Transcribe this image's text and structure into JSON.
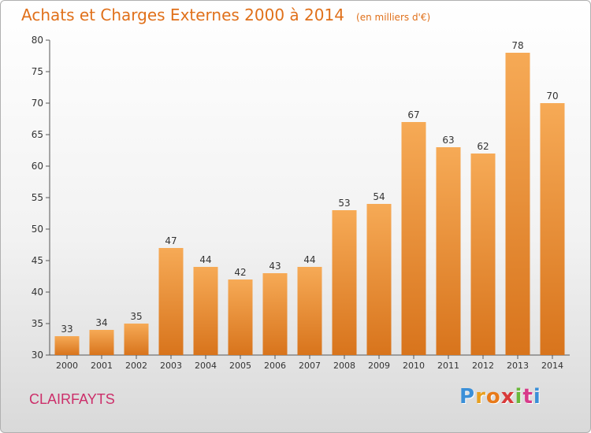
{
  "header": {
    "title": "Achats et Charges Externes 2000 à 2014",
    "subtitle": "(en milliers d'€)"
  },
  "footer": {
    "commune": "CLAIRFAYTS",
    "logo_letters": [
      "P",
      "r",
      "o",
      "x",
      "i",
      "t",
      "i"
    ],
    "logo_colors": [
      "#3a8fd8",
      "#e8a020",
      "#e87a1a",
      "#d83a3a",
      "#6ab83a",
      "#d83a8a",
      "#3a8fd8"
    ]
  },
  "colors": {
    "bar_light": "#f6aa56",
    "bar_dark": "#d8741c",
    "title": "#e0701a",
    "commune": "#cc2f6a"
  },
  "chart_data": {
    "type": "bar",
    "title": "Achats et Charges Externes 2000 à 2014",
    "subtitle": "(en milliers d'€)",
    "categories": [
      "2000",
      "2001",
      "2002",
      "2003",
      "2004",
      "2005",
      "2006",
      "2007",
      "2008",
      "2009",
      "2010",
      "2011",
      "2012",
      "2013",
      "2014"
    ],
    "values": [
      33,
      34,
      35,
      47,
      44,
      42,
      43,
      44,
      53,
      54,
      67,
      63,
      62,
      78,
      70
    ],
    "xlabel": "",
    "ylabel": "",
    "ylim": [
      30,
      80
    ],
    "yticks": [
      30,
      35,
      40,
      45,
      50,
      55,
      60,
      65,
      70,
      75,
      80
    ],
    "grid": false,
    "data_labels": true
  }
}
